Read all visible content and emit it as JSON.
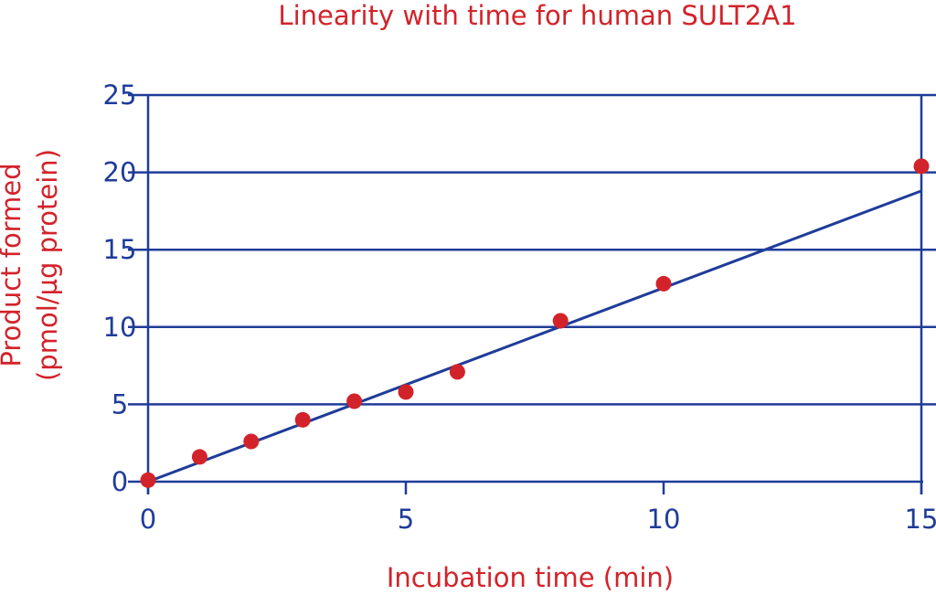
{
  "chart_data": {
    "type": "scatter",
    "title": "Linearity with time for human SULT2A1",
    "xlabel": "Incubation time (min)",
    "ylabel_lines": [
      "Product formed",
      "(pmol/µg protein)"
    ],
    "xlim": [
      0,
      15
    ],
    "ylim": [
      0,
      25
    ],
    "x_ticks": [
      0,
      5,
      10,
      15
    ],
    "y_ticks": [
      0,
      5,
      10,
      15,
      20,
      25
    ],
    "grid": "horizontal",
    "series": [
      {
        "points": [
          {
            "x": 0,
            "y": 0.1
          },
          {
            "x": 1,
            "y": 1.6
          },
          {
            "x": 2,
            "y": 2.6
          },
          {
            "x": 3,
            "y": 4.0
          },
          {
            "x": 4,
            "y": 5.2
          },
          {
            "x": 5,
            "y": 5.8
          },
          {
            "x": 6,
            "y": 7.1
          },
          {
            "x": 8,
            "y": 10.4
          },
          {
            "x": 10,
            "y": 12.8
          },
          {
            "x": 15,
            "y": 20.4
          }
        ],
        "color": "#d2232a"
      }
    ],
    "trendline": {
      "type": "linear",
      "from": {
        "x": 0,
        "y": 0
      },
      "to": {
        "x": 15,
        "y": 18.8
      },
      "color": "#1f3c99"
    }
  }
}
